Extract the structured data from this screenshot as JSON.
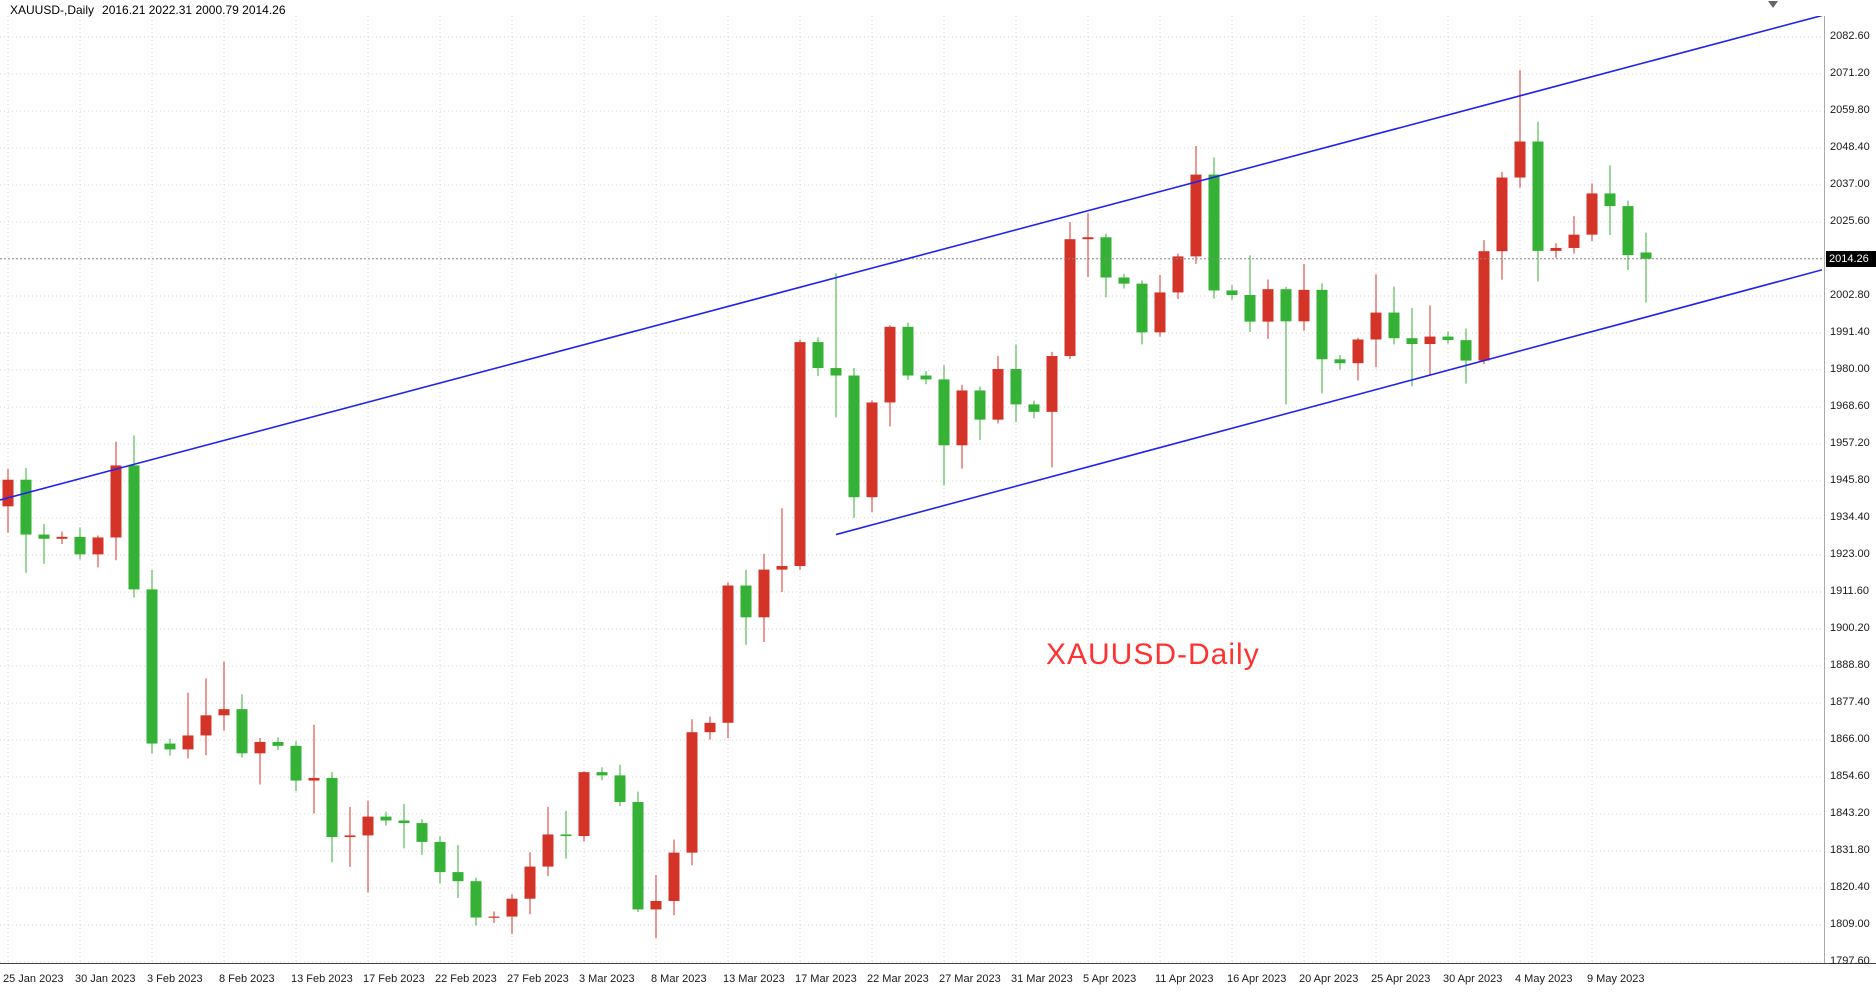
{
  "header": {
    "symbol_period": "XAUUSD-,Daily",
    "ohlc": "2016.21 2022.31 2000.79 2014.26"
  },
  "annotation": {
    "text": "XAUUSD-Daily",
    "color": "#ff3232"
  },
  "price_axis": {
    "current_price": "2014.26",
    "labels": [
      "2082.60",
      "2071.20",
      "2059.80",
      "2048.40",
      "2037.00",
      "2025.60",
      "2014.20",
      "2002.80",
      "1991.40",
      "1980.00",
      "1968.60",
      "1957.20",
      "1945.80",
      "1934.40",
      "1923.00",
      "1911.60",
      "1900.20",
      "1888.80",
      "1877.40",
      "1866.00",
      "1854.60",
      "1843.20",
      "1831.80",
      "1820.40",
      "1809.00",
      "1797.60"
    ]
  },
  "date_axis": {
    "labels": [
      {
        "label": "25 Jan 2023",
        "i": 0
      },
      {
        "label": "30 Jan 2023",
        "i": 4
      },
      {
        "label": "3 Feb 2023",
        "i": 8
      },
      {
        "label": "8 Feb 2023",
        "i": 12
      },
      {
        "label": "13 Feb 2023",
        "i": 16
      },
      {
        "label": "17 Feb 2023",
        "i": 20
      },
      {
        "label": "22 Feb 2023",
        "i": 24
      },
      {
        "label": "27 Feb 2023",
        "i": 28
      },
      {
        "label": "3 Mar 2023",
        "i": 32
      },
      {
        "label": "8 Mar 2023",
        "i": 36
      },
      {
        "label": "13 Mar 2023",
        "i": 40
      },
      {
        "label": "17 Mar 2023",
        "i": 44
      },
      {
        "label": "22 Mar 2023",
        "i": 48
      },
      {
        "label": "27 Mar 2023",
        "i": 52
      },
      {
        "label": "31 Mar 2023",
        "i": 56
      },
      {
        "label": "5 Apr 2023",
        "i": 60
      },
      {
        "label": "11 Apr 2023",
        "i": 64
      },
      {
        "label": "16 Apr 2023",
        "i": 68
      },
      {
        "label": "20 Apr 2023",
        "i": 72
      },
      {
        "label": "25 Apr 2023",
        "i": 76
      },
      {
        "label": "30 Apr 2023",
        "i": 80
      },
      {
        "label": "4 May 2023",
        "i": 84
      },
      {
        "label": "9 May 2023",
        "i": 88
      }
    ]
  },
  "chart_data": {
    "type": "candlestick",
    "symbol": "XAUUSD",
    "timeframe": "Daily",
    "current_price": 2014.26,
    "colors": {
      "bull": "#d43428",
      "bear": "#35b235",
      "trendline": "#2222ee",
      "grid": "#d6d6d6",
      "current_price_line": "#888888",
      "axis_text": "#1a1a1a",
      "price_tag_bg": "#000000",
      "price_tag_text": "#ffffff"
    },
    "note": "platform colour scheme draws bullish candles red and bearish candles green",
    "candle_format": [
      "date",
      "open",
      "high",
      "low",
      "close"
    ],
    "candles": [
      [
        "25 Jan",
        1938.0,
        1949.5,
        1929.8,
        1946.2
      ],
      [
        "26 Jan",
        1946.2,
        1949.8,
        1917.5,
        1929.3
      ],
      [
        "27 Jan",
        1929.3,
        1932.5,
        1920.3,
        1928.0
      ],
      [
        "29 Jan",
        1928.0,
        1930.2,
        1926.4,
        1928.6
      ],
      [
        "30 Jan",
        1928.6,
        1931.5,
        1921.6,
        1923.2
      ],
      [
        "31 Jan",
        1923.2,
        1929.0,
        1919.2,
        1928.4
      ],
      [
        "1 Feb",
        1928.4,
        1957.9,
        1921.4,
        1950.6
      ],
      [
        "2 Feb",
        1950.6,
        1959.8,
        1909.9,
        1912.4
      ],
      [
        "3 Feb",
        1912.4,
        1918.4,
        1861.8,
        1864.9
      ],
      [
        "5 Feb",
        1864.9,
        1866.4,
        1861.2,
        1863.1
      ],
      [
        "6 Feb",
        1863.1,
        1880.6,
        1860.3,
        1867.4
      ],
      [
        "7 Feb",
        1867.4,
        1885.0,
        1861.3,
        1873.6
      ],
      [
        "8 Feb",
        1873.6,
        1890.2,
        1868.9,
        1875.5
      ],
      [
        "9 Feb",
        1875.5,
        1880.1,
        1860.6,
        1861.9
      ],
      [
        "10 Feb",
        1861.9,
        1866.6,
        1852.3,
        1865.4
      ],
      [
        "12 Feb",
        1865.4,
        1866.8,
        1862.9,
        1864.2
      ],
      [
        "13 Feb",
        1864.2,
        1865.6,
        1850.3,
        1853.5
      ],
      [
        "14 Feb",
        1853.5,
        1870.7,
        1843.3,
        1854.3
      ],
      [
        "15 Feb",
        1854.3,
        1856.1,
        1828.3,
        1836.1
      ],
      [
        "16 Feb",
        1836.1,
        1845.4,
        1826.9,
        1836.6
      ],
      [
        "17 Feb",
        1836.6,
        1847.3,
        1819.0,
        1842.4
      ],
      [
        "19 Feb",
        1842.4,
        1843.9,
        1839.6,
        1841.2
      ],
      [
        "20 Feb",
        1841.2,
        1846.3,
        1832.6,
        1840.4
      ],
      [
        "21 Feb",
        1840.4,
        1841.6,
        1830.6,
        1834.6
      ],
      [
        "22 Feb",
        1834.6,
        1836.3,
        1821.8,
        1825.3
      ],
      [
        "23 Feb",
        1825.3,
        1833.6,
        1817.3,
        1822.5
      ],
      [
        "24 Feb",
        1822.5,
        1823.6,
        1808.8,
        1811.3
      ],
      [
        "26 Feb",
        1811.3,
        1813.2,
        1809.6,
        1811.6
      ],
      [
        "27 Feb",
        1811.6,
        1818.5,
        1806.2,
        1817.1
      ],
      [
        "28 Feb",
        1817.1,
        1831.4,
        1812.3,
        1827.0
      ],
      [
        "1 Mar",
        1827.0,
        1845.4,
        1824.1,
        1836.9
      ],
      [
        "2 Mar",
        1836.9,
        1844.2,
        1829.4,
        1836.4
      ],
      [
        "3 Mar",
        1836.4,
        1856.4,
        1834.7,
        1856.1
      ],
      [
        "5 Mar",
        1856.1,
        1857.6,
        1853.6,
        1855.1
      ],
      [
        "6 Mar",
        1855.1,
        1858.4,
        1845.6,
        1846.9
      ],
      [
        "7 Mar",
        1846.9,
        1850.1,
        1813.0,
        1813.8
      ],
      [
        "8 Mar",
        1813.8,
        1824.4,
        1804.9,
        1816.4
      ],
      [
        "9 Mar",
        1816.4,
        1835.3,
        1812.0,
        1831.3
      ],
      [
        "10 Mar",
        1831.3,
        1872.4,
        1827.4,
        1868.4
      ],
      [
        "12 Mar",
        1868.4,
        1873.2,
        1866.1,
        1871.3
      ],
      [
        "13 Mar",
        1871.3,
        1914.6,
        1866.6,
        1913.6
      ],
      [
        "14 Mar",
        1913.6,
        1918.4,
        1895.3,
        1903.8
      ],
      [
        "15 Mar",
        1903.8,
        1923.4,
        1896.2,
        1918.5
      ],
      [
        "16 Mar",
        1918.5,
        1937.4,
        1911.6,
        1919.6
      ],
      [
        "17 Mar",
        1919.6,
        1989.4,
        1918.4,
        1988.6
      ],
      [
        "19 Mar",
        1988.6,
        1990.1,
        1978.1,
        1980.6
      ],
      [
        "20 Mar",
        1980.6,
        2009.8,
        1965.4,
        1978.3
      ],
      [
        "21 Mar",
        1978.3,
        1980.6,
        1934.4,
        1940.8
      ],
      [
        "22 Mar",
        1940.8,
        1970.6,
        1936.3,
        1970.0
      ],
      [
        "23 Mar",
        1970.0,
        1993.8,
        1962.6,
        1993.3
      ],
      [
        "24 Mar",
        1993.3,
        1994.6,
        1977.0,
        1978.3
      ],
      [
        "26 Mar",
        1978.3,
        1979.6,
        1975.6,
        1977.1
      ],
      [
        "27 Mar",
        1977.1,
        1981.5,
        1944.4,
        1956.8
      ],
      [
        "28 Mar",
        1956.8,
        1975.4,
        1949.6,
        1973.7
      ],
      [
        "29 Mar",
        1973.7,
        1974.9,
        1958.4,
        1964.7
      ],
      [
        "30 Mar",
        1964.7,
        1984.3,
        1963.5,
        1980.3
      ],
      [
        "31 Mar",
        1980.3,
        1987.8,
        1963.9,
        1969.4
      ],
      [
        "2 Apr",
        1969.4,
        1970.6,
        1965.1,
        1967.1
      ],
      [
        "3 Apr",
        1967.1,
        1985.6,
        1950.0,
        1984.3
      ],
      [
        "4 Apr",
        1984.3,
        2025.6,
        1983.4,
        2020.3
      ],
      [
        "5 Apr",
        2020.3,
        2028.3,
        2008.6,
        2020.9
      ],
      [
        "6 Apr",
        2020.9,
        2022.0,
        2002.4,
        2008.5
      ],
      [
        "9 Apr",
        2008.5,
        2009.6,
        2005.1,
        2006.6
      ],
      [
        "10 Apr",
        2006.6,
        2007.6,
        1987.9,
        1991.6
      ],
      [
        "11 Apr",
        1991.6,
        2009.3,
        1990.3,
        2003.9
      ],
      [
        "12 Apr",
        2003.9,
        2015.9,
        2001.9,
        2015.0
      ],
      [
        "13 Apr",
        2015.0,
        2049.0,
        2012.7,
        2040.2
      ],
      [
        "14 Apr",
        2040.2,
        2045.5,
        2002.0,
        2004.5
      ],
      [
        "16 Apr",
        2004.5,
        2006.1,
        2001.6,
        2003.1
      ],
      [
        "17 Apr",
        2003.1,
        2015.3,
        1991.7,
        1994.9
      ],
      [
        "18 Apr",
        1994.9,
        2007.9,
        1989.6,
        2004.9
      ],
      [
        "19 Apr",
        2004.9,
        2005.6,
        1969.4,
        1995.0
      ],
      [
        "20 Apr",
        1995.0,
        2012.7,
        1992.1,
        2004.7
      ],
      [
        "21 Apr",
        2004.7,
        2006.7,
        1972.8,
        1983.3
      ],
      [
        "23 Apr",
        1983.3,
        1984.6,
        1980.1,
        1982.1
      ],
      [
        "24 Apr",
        1982.1,
        1989.9,
        1976.8,
        1989.4
      ],
      [
        "25 Apr",
        1989.4,
        2009.5,
        1980.9,
        1997.7
      ],
      [
        "26 Apr",
        1997.7,
        2005.7,
        1987.9,
        1989.8
      ],
      [
        "27 Apr",
        1989.8,
        1999.1,
        1975.0,
        1988.0
      ],
      [
        "28 Apr",
        1988.0,
        1999.9,
        1978.2,
        1990.3
      ],
      [
        "30 Apr",
        1990.3,
        1991.9,
        1988.1,
        1989.2
      ],
      [
        "1 May",
        1989.2,
        1992.8,
        1975.8,
        1982.9
      ],
      [
        "2 May",
        1982.9,
        2020.0,
        1981.8,
        2016.6
      ],
      [
        "3 May",
        2016.6,
        2041.0,
        2007.8,
        2039.3
      ],
      [
        "4 May",
        2039.3,
        2072.4,
        2036.2,
        2050.4
      ],
      [
        "5 May",
        2050.4,
        2056.5,
        2007.3,
        2016.7
      ],
      [
        "7 May",
        2016.7,
        2019.1,
        2014.6,
        2017.6
      ],
      [
        "8 May",
        2017.6,
        2027.4,
        2015.9,
        2021.7
      ],
      [
        "9 May",
        2021.7,
        2037.5,
        2019.7,
        2034.4
      ],
      [
        "10 May",
        2034.4,
        2043.1,
        2021.6,
        2030.5
      ],
      [
        "11 May",
        2030.5,
        2032.2,
        2010.8,
        2015.4
      ],
      [
        "12 May",
        2016.21,
        2022.31,
        2000.79,
        2014.26
      ]
    ],
    "trendlines": [
      {
        "name": "channel-upper-trendline",
        "points": [
          [
            0,
            1940.6
          ],
          [
            91,
            2074.8
          ]
        ],
        "extend_left": true,
        "extend_right": true
      },
      {
        "name": "channel-lower-trendline",
        "points": [
          [
            46,
            1929.3
          ],
          [
            91,
            1996.3
          ]
        ],
        "extend_left": false,
        "extend_right": true
      }
    ]
  }
}
